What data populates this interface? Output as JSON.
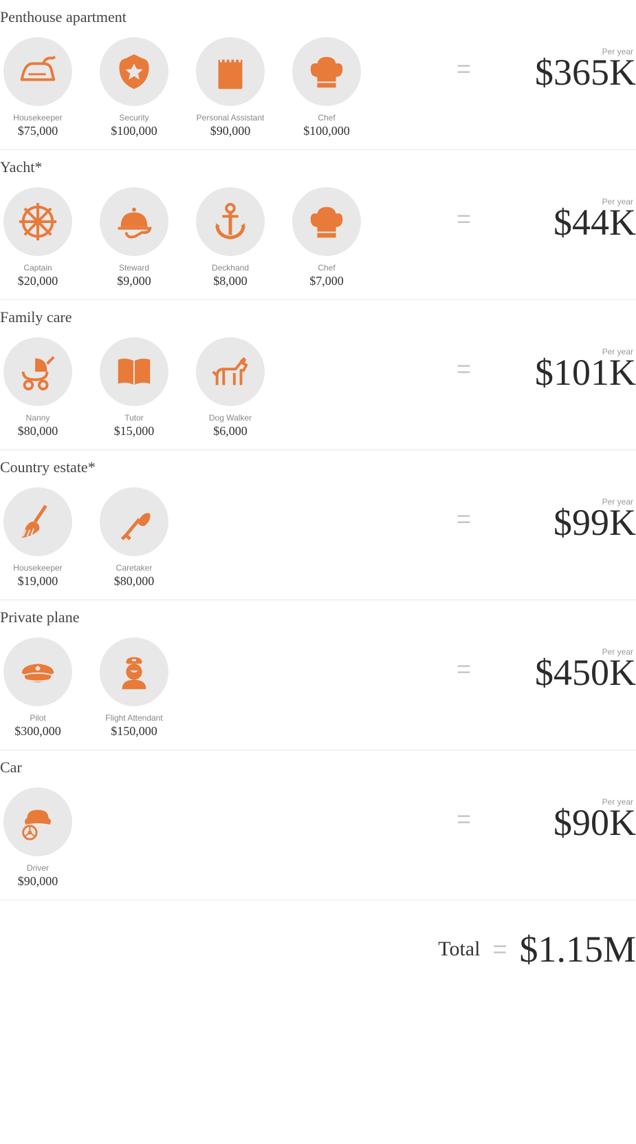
{
  "style": {
    "icon_color": "#e87a3a",
    "icon_bg": "#e8e8e8",
    "text_primary": "#333333",
    "text_secondary": "#888888",
    "divider_color": "#e5e5e5",
    "equals_color": "#c8c8c8",
    "subtotal_fontsize": 54,
    "title_fontsize": 22,
    "item_label_fontsize": 12,
    "item_cost_fontsize": 18
  },
  "per_year_label": "Per year",
  "sections": [
    {
      "title": "Penthouse apartment",
      "subtotal": "$365K",
      "items": [
        {
          "label": "Housekeeper",
          "cost": "$75,000",
          "icon": "iron"
        },
        {
          "label": "Security",
          "cost": "$100,000",
          "icon": "badge"
        },
        {
          "label": "Personal Assistant",
          "cost": "$90,000",
          "icon": "notepad"
        },
        {
          "label": "Chef",
          "cost": "$100,000",
          "icon": "chefhat"
        }
      ]
    },
    {
      "title": "Yacht*",
      "subtotal": "$44K",
      "items": [
        {
          "label": "Captain",
          "cost": "$20,000",
          "icon": "wheel"
        },
        {
          "label": "Steward",
          "cost": "$9,000",
          "icon": "cloche"
        },
        {
          "label": "Deckhand",
          "cost": "$8,000",
          "icon": "anchor"
        },
        {
          "label": "Chef",
          "cost": "$7,000",
          "icon": "chefhat"
        }
      ]
    },
    {
      "title": "Family care",
      "subtotal": "$101K",
      "items": [
        {
          "label": "Nanny",
          "cost": "$80,000",
          "icon": "stroller"
        },
        {
          "label": "Tutor",
          "cost": "$15,000",
          "icon": "book"
        },
        {
          "label": "Dog Walker",
          "cost": "$6,000",
          "icon": "dog"
        }
      ]
    },
    {
      "title": "Country estate*",
      "subtotal": "$99K",
      "items": [
        {
          "label": "Housekeeper",
          "cost": "$19,000",
          "icon": "broom"
        },
        {
          "label": "Caretaker",
          "cost": "$80,000",
          "icon": "shovel"
        }
      ]
    },
    {
      "title": "Private plane",
      "subtotal": "$450K",
      "items": [
        {
          "label": "Pilot",
          "cost": "$300,000",
          "icon": "pilothat"
        },
        {
          "label": "Flight Attendant",
          "cost": "$150,000",
          "icon": "attendant"
        }
      ]
    },
    {
      "title": "Car",
      "subtotal": "$90K",
      "items": [
        {
          "label": "Driver",
          "cost": "$90,000",
          "icon": "driver"
        }
      ]
    }
  ],
  "total": {
    "label": "Total",
    "amount": "$1.15M"
  }
}
